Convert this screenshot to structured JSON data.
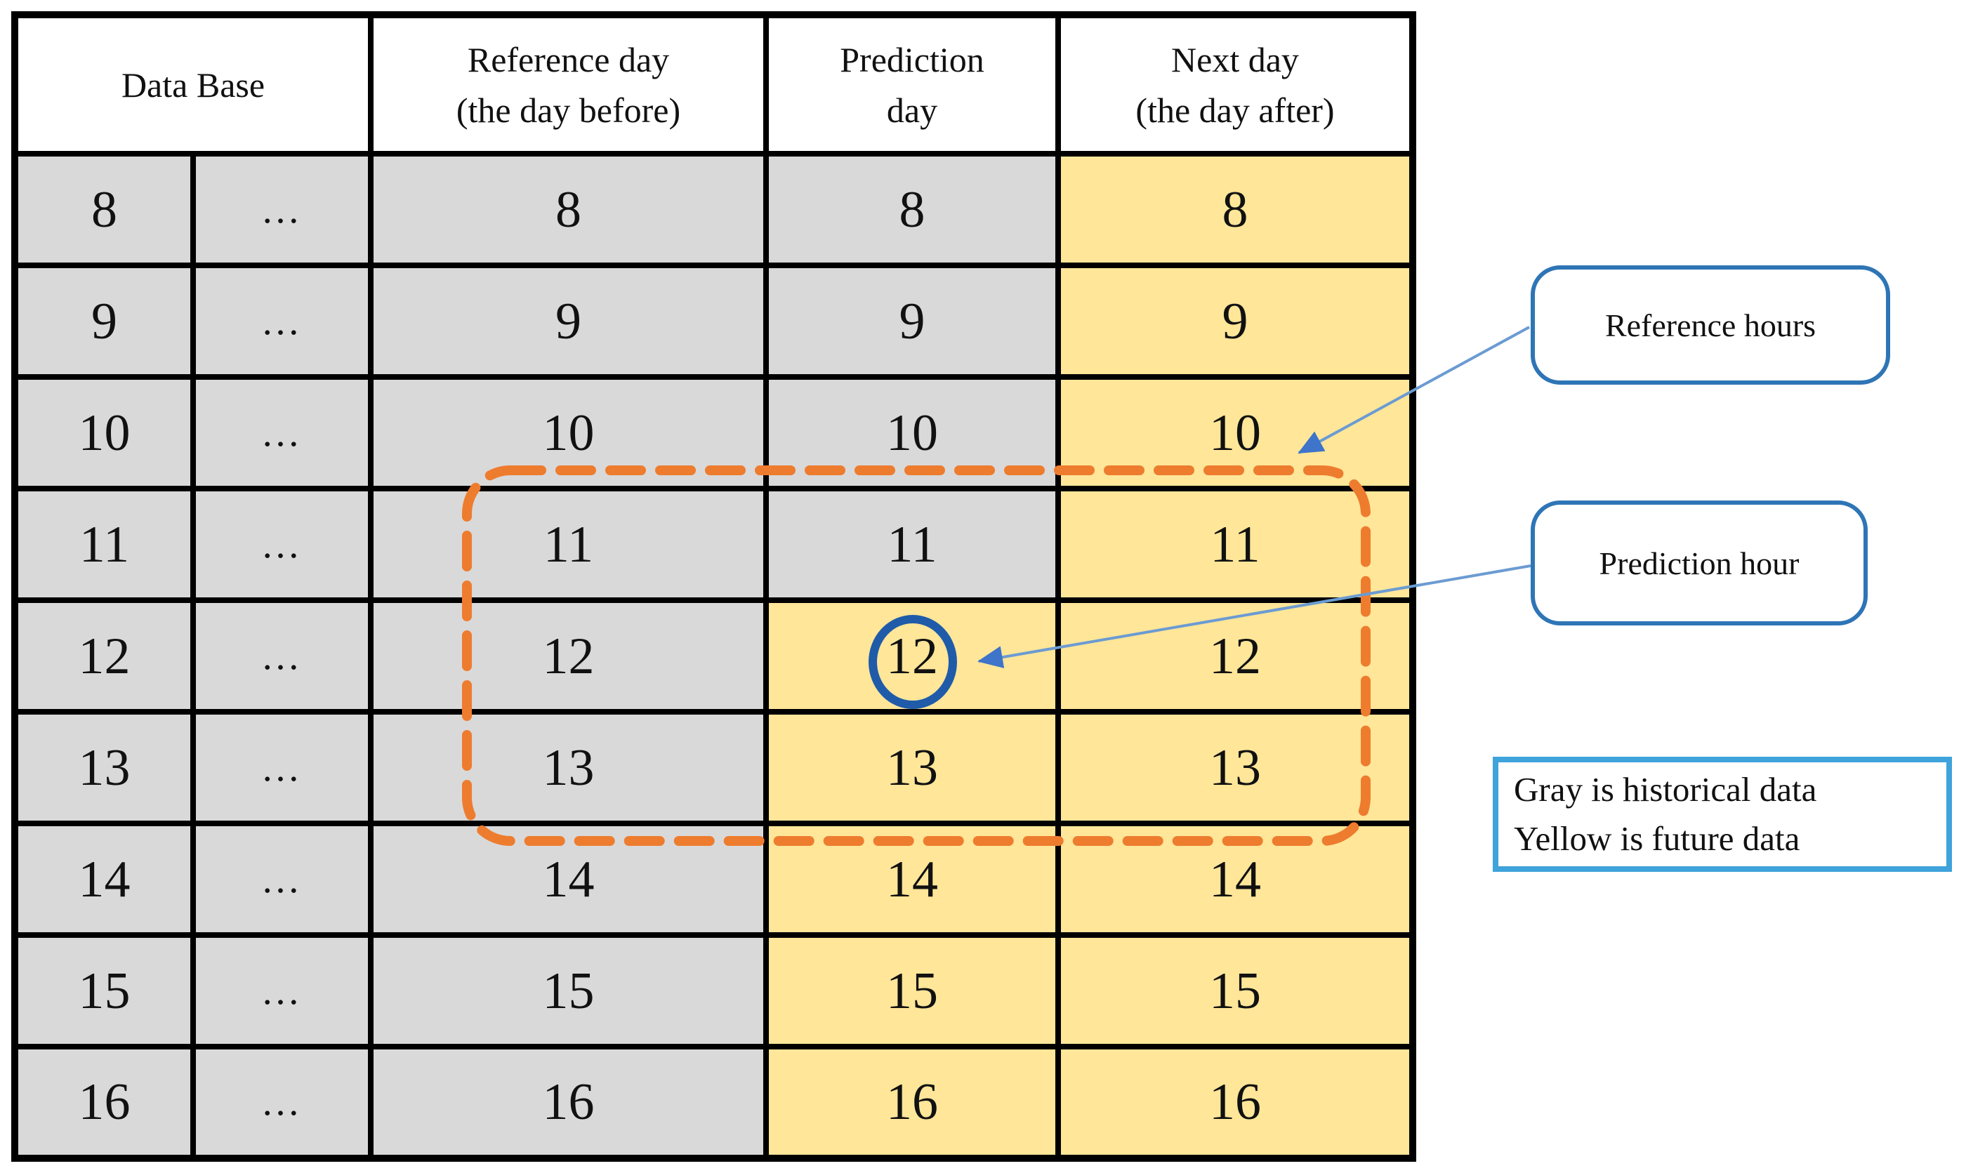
{
  "table": {
    "headers": [
      {
        "lines": [
          "Data Base",
          ""
        ]
      },
      {
        "lines": [
          "Reference day",
          "(the day before)"
        ]
      },
      {
        "lines": [
          "Prediction",
          "day"
        ]
      },
      {
        "lines": [
          "Next day",
          "(the day after)"
        ]
      }
    ],
    "rows": [
      {
        "cells": [
          {
            "text": "8",
            "bg": "gray"
          },
          {
            "text": "…",
            "bg": "gray",
            "dots": true
          },
          {
            "text": "8",
            "bg": "gray"
          },
          {
            "text": "8",
            "bg": "gray"
          },
          {
            "text": "8",
            "bg": "yellow"
          }
        ]
      },
      {
        "cells": [
          {
            "text": "9",
            "bg": "gray"
          },
          {
            "text": "…",
            "bg": "gray",
            "dots": true
          },
          {
            "text": "9",
            "bg": "gray"
          },
          {
            "text": "9",
            "bg": "gray"
          },
          {
            "text": "9",
            "bg": "yellow"
          }
        ]
      },
      {
        "cells": [
          {
            "text": "10",
            "bg": "gray"
          },
          {
            "text": "…",
            "bg": "gray",
            "dots": true
          },
          {
            "text": "10",
            "bg": "gray"
          },
          {
            "text": "10",
            "bg": "gray"
          },
          {
            "text": "10",
            "bg": "yellow"
          }
        ]
      },
      {
        "cells": [
          {
            "text": "11",
            "bg": "gray"
          },
          {
            "text": "…",
            "bg": "gray",
            "dots": true
          },
          {
            "text": "11",
            "bg": "gray"
          },
          {
            "text": "11",
            "bg": "gray"
          },
          {
            "text": "11",
            "bg": "yellow"
          }
        ]
      },
      {
        "cells": [
          {
            "text": "12",
            "bg": "gray"
          },
          {
            "text": "…",
            "bg": "gray",
            "dots": true
          },
          {
            "text": "12",
            "bg": "gray"
          },
          {
            "text": "12",
            "bg": "yellow"
          },
          {
            "text": "12",
            "bg": "yellow"
          }
        ]
      },
      {
        "cells": [
          {
            "text": "13",
            "bg": "gray"
          },
          {
            "text": "…",
            "bg": "gray",
            "dots": true
          },
          {
            "text": "13",
            "bg": "gray"
          },
          {
            "text": "13",
            "bg": "yellow"
          },
          {
            "text": "13",
            "bg": "yellow"
          }
        ]
      },
      {
        "cells": [
          {
            "text": "14",
            "bg": "gray"
          },
          {
            "text": "…",
            "bg": "gray",
            "dots": true
          },
          {
            "text": "14",
            "bg": "gray"
          },
          {
            "text": "14",
            "bg": "yellow"
          },
          {
            "text": "14",
            "bg": "yellow"
          }
        ]
      },
      {
        "cells": [
          {
            "text": "15",
            "bg": "gray"
          },
          {
            "text": "…",
            "bg": "gray",
            "dots": true
          },
          {
            "text": "15",
            "bg": "gray"
          },
          {
            "text": "15",
            "bg": "yellow"
          },
          {
            "text": "15",
            "bg": "yellow"
          }
        ]
      },
      {
        "cells": [
          {
            "text": "16",
            "bg": "gray"
          },
          {
            "text": "…",
            "bg": "gray",
            "dots": true
          },
          {
            "text": "16",
            "bg": "gray"
          },
          {
            "text": "16",
            "bg": "yellow"
          },
          {
            "text": "16",
            "bg": "yellow"
          }
        ]
      }
    ]
  },
  "annotations": {
    "reference_callout": {
      "label": "Reference hours"
    },
    "prediction_callout": {
      "label": "Prediction hour"
    },
    "circled_cell": {
      "value": "12",
      "column": "Prediction day"
    },
    "legend": {
      "line1": "Gray is historical data",
      "line2": "Yellow is future data"
    }
  },
  "colors": {
    "cell_gray": "#D9D9D9",
    "cell_yellow": "#FFE699",
    "table_border": "#000000",
    "dash_orange": "#EE7C2E",
    "circle_blue": "#1F5BA9",
    "arrow_line_blue": "#6B9BD2",
    "arrow_head_blue": "#3E74C9",
    "callout_border_blue": "#2E75B6",
    "legend_border_blue": "#3FA3DC",
    "text_black": "#111111"
  }
}
